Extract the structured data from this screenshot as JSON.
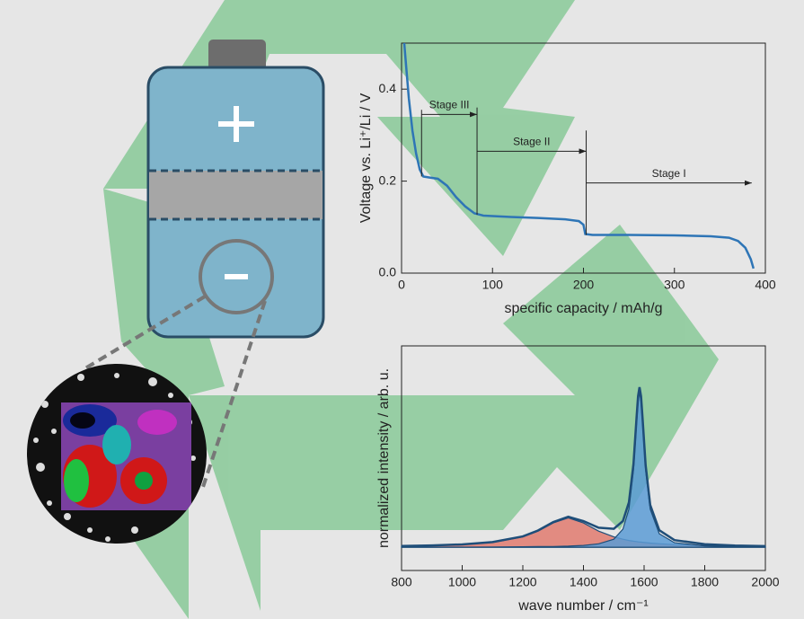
{
  "chart_data": [
    {
      "type": "line",
      "xlabel": "specific capacity / mAh/g",
      "ylabel": "Voltage vs. Li⁺/Li / V",
      "x": [
        3,
        5,
        8,
        12,
        16,
        20,
        24,
        30,
        40,
        50,
        60,
        70,
        80,
        90,
        120,
        150,
        180,
        195,
        200,
        202,
        210,
        250,
        300,
        340,
        360,
        370,
        378,
        384,
        387
      ],
      "series": [
        {
          "color": "#2e75b6",
          "values": [
            0.5,
            0.45,
            0.38,
            0.31,
            0.26,
            0.225,
            0.21,
            0.208,
            0.205,
            0.19,
            0.165,
            0.145,
            0.13,
            0.125,
            0.122,
            0.12,
            0.117,
            0.113,
            0.105,
            0.085,
            0.083,
            0.083,
            0.082,
            0.08,
            0.077,
            0.07,
            0.055,
            0.03,
            0.01
          ]
        }
      ],
      "xlim": [
        0,
        400
      ],
      "xticks": [
        0,
        100,
        200,
        300,
        400
      ],
      "ylim": [
        0,
        0.5
      ],
      "yticks": [
        {
          "value": 0,
          "label": "0.0"
        },
        {
          "value": 0.2,
          "label": "0.2"
        },
        {
          "value": 0.4,
          "label": "0.4"
        }
      ],
      "annotations": [
        {
          "text": "Stage III",
          "x": [
            22,
            83
          ],
          "y": 0.345
        },
        {
          "text": "Stage II",
          "x": [
            83,
            203
          ],
          "y": 0.265
        },
        {
          "text": "Stage I",
          "x": [
            203,
            385
          ],
          "y": 0.196
        }
      ],
      "boundaries": [
        {
          "x": 22,
          "y": [
            0.21,
            0.355
          ]
        },
        {
          "x": 83,
          "y": [
            0.127,
            0.36
          ]
        },
        {
          "x": 203,
          "y": [
            0.083,
            0.31
          ]
        }
      ]
    },
    {
      "type": "line",
      "xlabel": "wave number / cm⁻¹",
      "ylabel": "normalized intensity / arb. u.",
      "x": [
        800,
        900,
        1000,
        1100,
        1200,
        1250,
        1300,
        1350,
        1400,
        1450,
        1500,
        1530,
        1550,
        1565,
        1575,
        1580,
        1585,
        1590,
        1595,
        1605,
        1620,
        1650,
        1700,
        1800,
        1900,
        2000
      ],
      "series": [
        {
          "color": "#e07a6e",
          "fill": true,
          "values": [
            0.007,
            0.011,
            0.017,
            0.031,
            0.067,
            0.104,
            0.157,
            0.19,
            0.157,
            0.104,
            0.067,
            0.052,
            0.044,
            0.039,
            0.037,
            0.035,
            0.034,
            0.033,
            0.032,
            0.03,
            0.027,
            0.023,
            0.017,
            0.011,
            0.007,
            0.005
          ]
        },
        {
          "color": "#5b9bd5",
          "fill": true,
          "values": [
            0.001,
            0.001,
            0.001,
            0.002,
            0.003,
            0.004,
            0.005,
            0.007,
            0.012,
            0.022,
            0.052,
            0.117,
            0.246,
            0.5,
            0.8,
            0.941,
            1,
            0.941,
            0.8,
            0.5,
            0.246,
            0.087,
            0.029,
            0.009,
            0.004,
            0.002
          ]
        },
        {
          "color": "#1f4e79",
          "fill": false,
          "values": [
            0.008,
            0.012,
            0.018,
            0.033,
            0.07,
            0.108,
            0.162,
            0.197,
            0.169,
            0.126,
            0.119,
            0.169,
            0.29,
            0.539,
            0.837,
            0.976,
            1.034,
            0.974,
            0.832,
            0.53,
            0.273,
            0.11,
            0.046,
            0.02,
            0.011,
            0.007
          ]
        }
      ],
      "xlim": [
        800,
        2000
      ],
      "xticks": [
        800,
        1000,
        1200,
        1400,
        1600,
        1800,
        2000
      ],
      "ylim": [
        -0.15,
        1.3
      ]
    }
  ]
}
